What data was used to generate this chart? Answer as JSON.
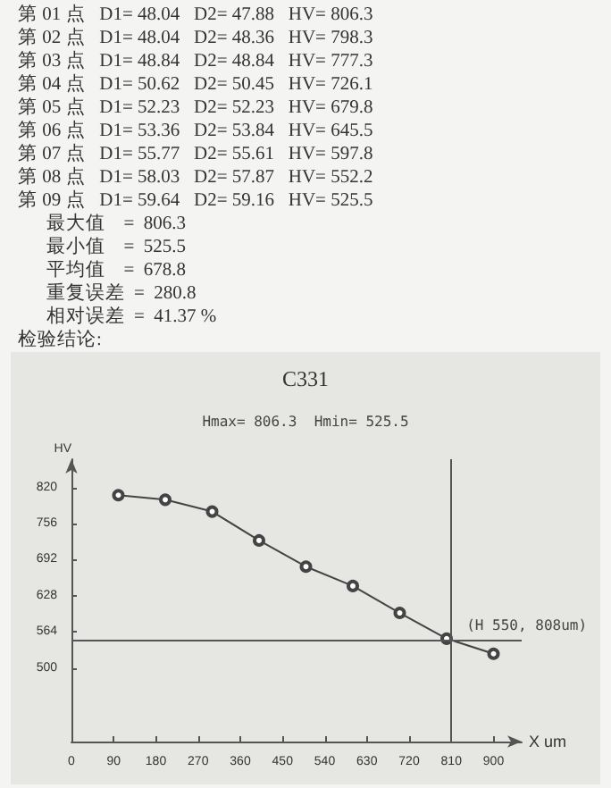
{
  "chart_data": {
    "type": "line",
    "title": "C331",
    "subtitle": "Hmax= 806.3  Hmin= 525.5",
    "xlabel": "X um",
    "ylabel": "HV",
    "annotations": [
      "第 01 点   D1= 48.04   D2= 47.88   HV= 806.3",
      "第 02 点   D1= 48.04   D2= 48.36   HV= 798.3",
      "第 03 点   D1= 48.84   D2= 48.84   HV= 777.3",
      "第 04 点   D1= 50.62   D2= 50.45   HV= 726.1",
      "第 05 点   D1= 52.23   D2= 52.23   HV= 679.8",
      "第 06 点   D1= 53.36   D2= 53.84   HV= 645.5",
      "第 07 点   D1= 55.77   D2= 55.61   HV= 597.8",
      "第 08 点   D1= 58.03   D2= 57.87   HV= 552.2",
      "第 09 点   D1= 59.64   D2= 59.16   HV= 525.5",
      "      最大值    =  806.3",
      "      最小值    =  525.5",
      "      平均值    =  678.8",
      "      重复误差  =  280.8",
      "      相对误差  =  41.37 %",
      "检验结论:",
      {
        "text": "(H 550, 808um)",
        "x": 808,
        "y": 550
      }
    ],
    "x": [
      100,
      200,
      300,
      400,
      500,
      600,
      700,
      800,
      900
    ],
    "series": [
      {
        "color": "#444444",
        "values": [
          806.3,
          798.3,
          777.3,
          726.1,
          679.8,
          645.5,
          597.8,
          552.2,
          525.5
        ]
      }
    ],
    "xlim": [
      0,
      960
    ],
    "xticks": [
      0,
      90,
      180,
      270,
      360,
      450,
      540,
      630,
      720,
      810,
      900
    ],
    "ylim": [
      370,
      870
    ],
    "yticks": [
      500,
      564,
      628,
      692,
      756,
      820
    ],
    "ref_lines": [
      {
        "axis": "y",
        "value": 550,
        "color": "#555555"
      },
      {
        "axis": "x",
        "value": 808,
        "color": "#555555"
      }
    ],
    "grid": false,
    "marker": "circle",
    "line_style": "solid"
  }
}
